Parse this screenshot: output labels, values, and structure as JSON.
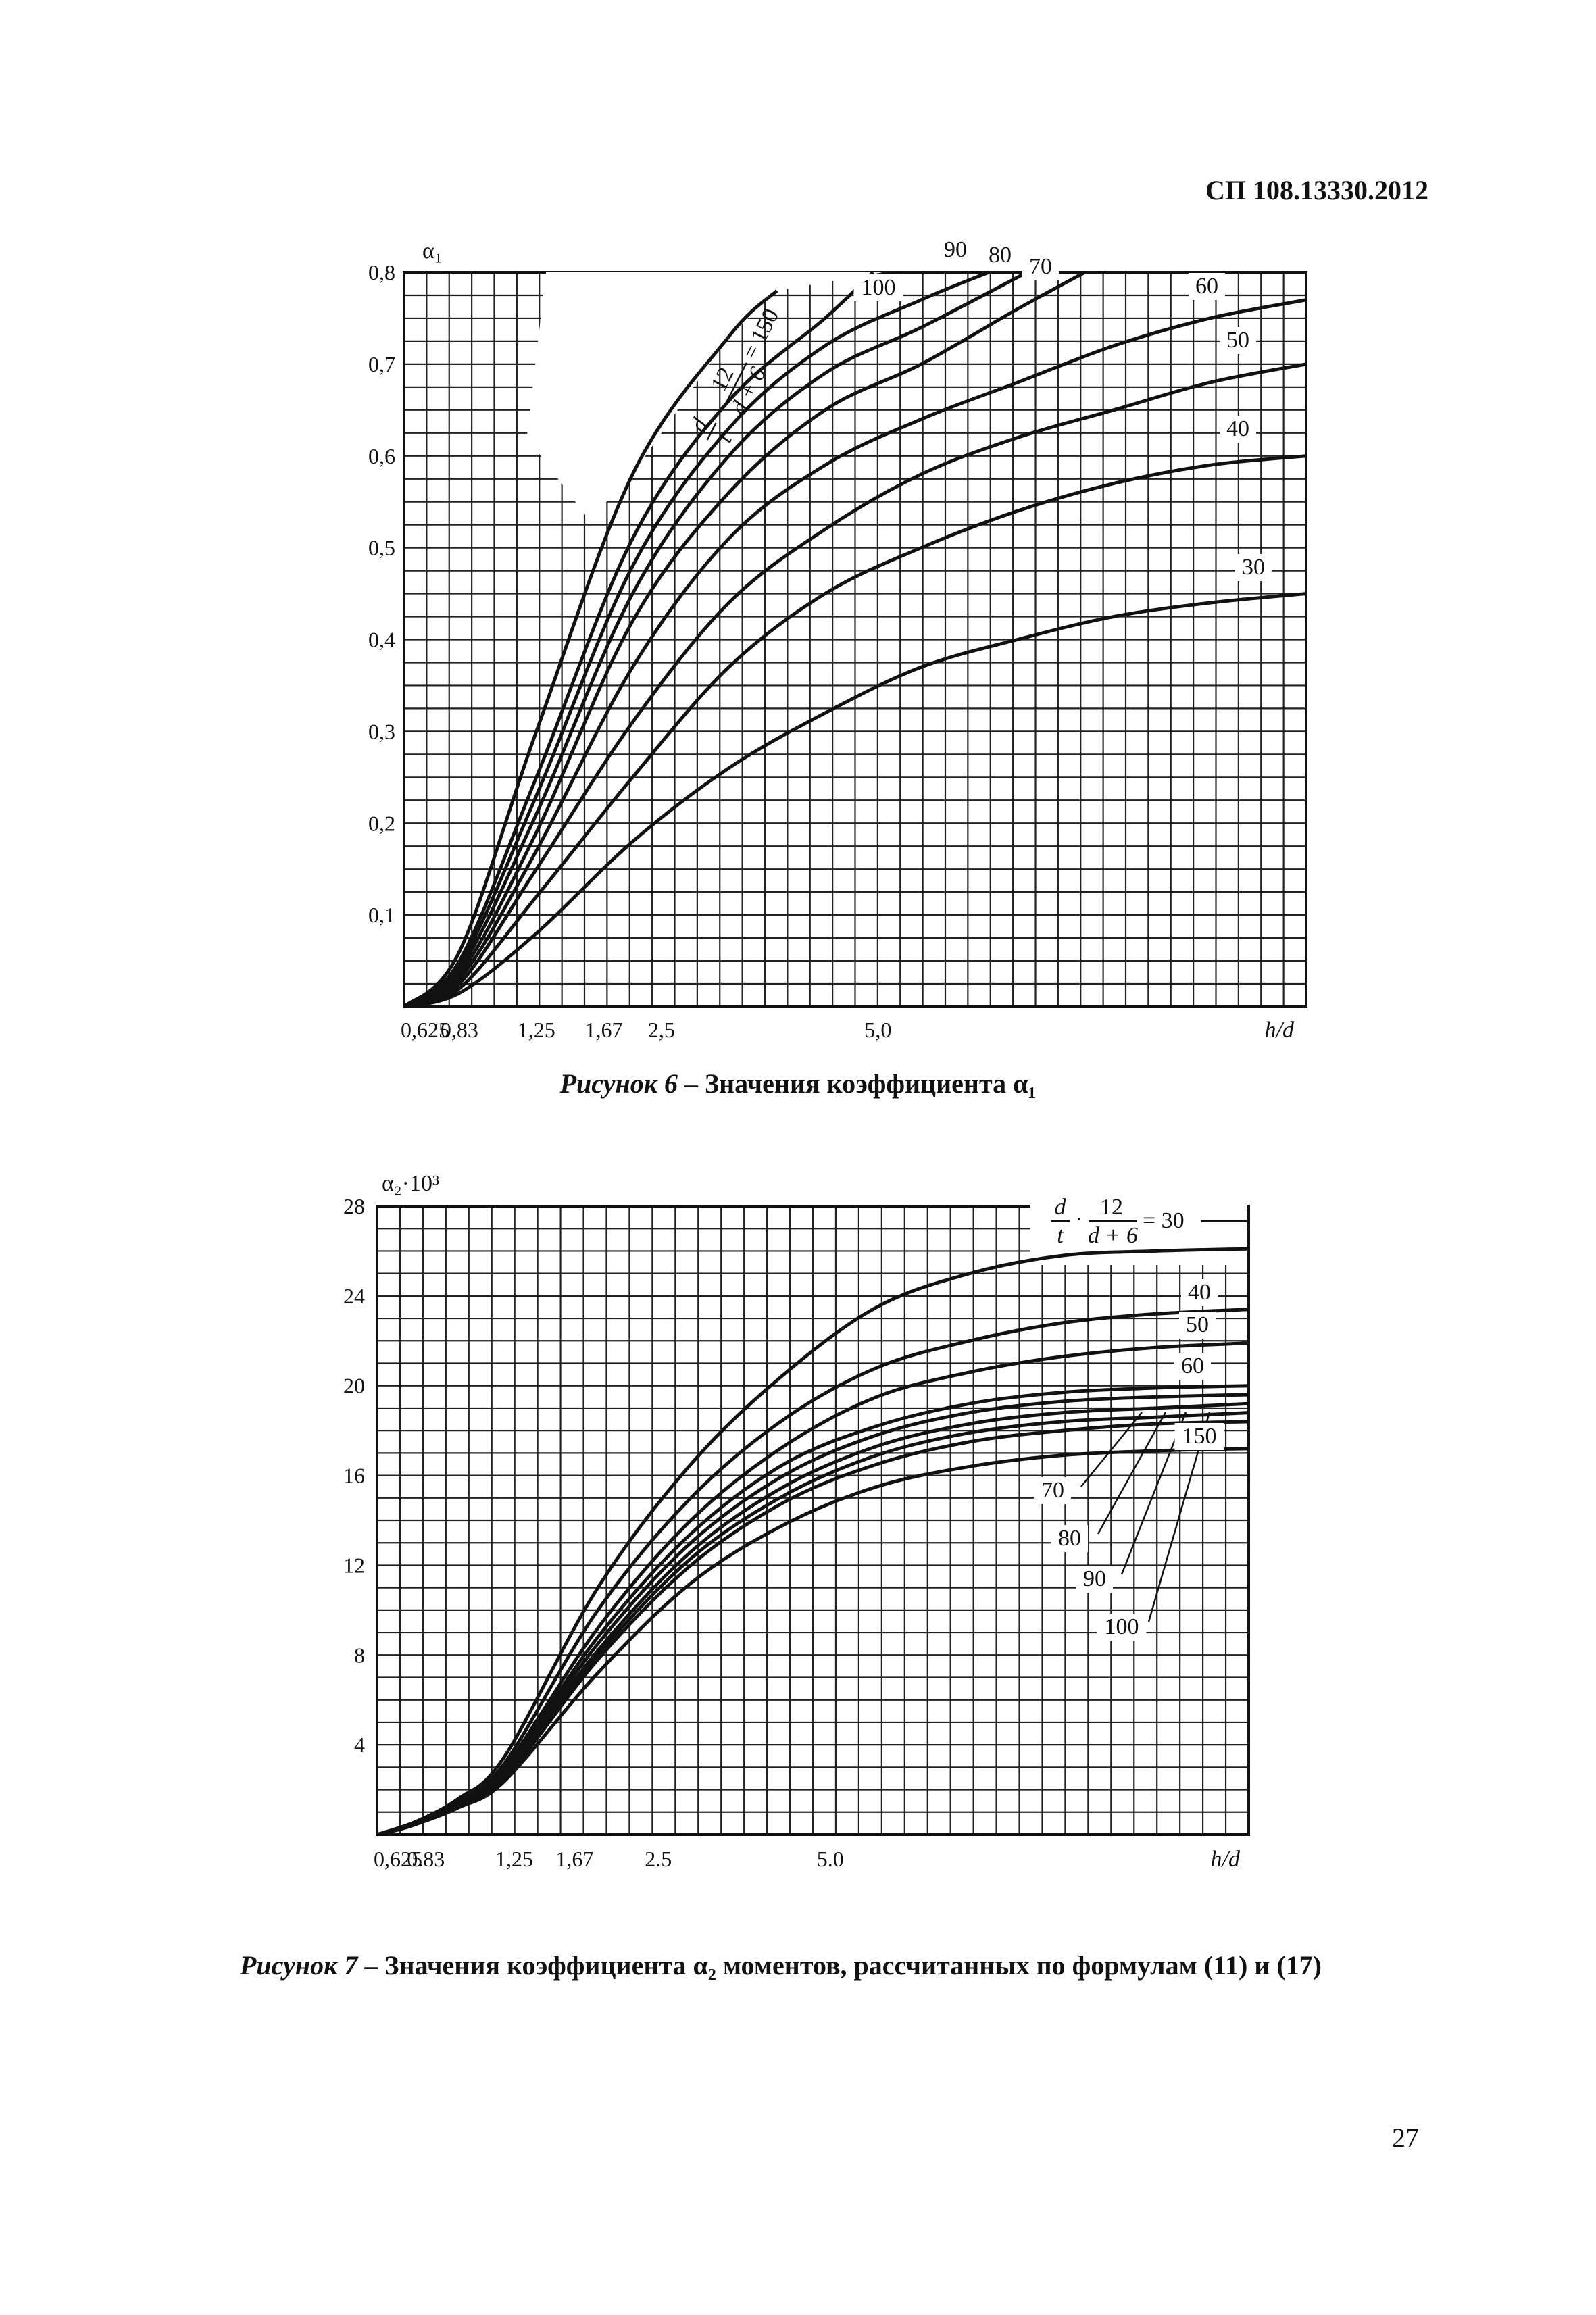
{
  "header": {
    "doc_code": "СП 108.13330.2012"
  },
  "page_number": "27",
  "chart_data": [
    {
      "type": "line",
      "caption_fig": "Рисунок 6",
      "caption_text": " – Значения коэффициента α₁",
      "ylabel": "α₁",
      "xlabel": "h/d",
      "param_formula": {
        "num1": "d",
        "den1": "t",
        "num2": "12",
        "den2": "d + 6",
        "value": "= 150"
      },
      "xlim": [
        0.625,
        10.0
      ],
      "ylim": [
        0,
        0.8
      ],
      "yticks": [
        "0,1",
        "0,2",
        "0,3",
        "0,4",
        "0,5",
        "0,6",
        "0,7",
        "0,8"
      ],
      "xticks": [
        "0,625",
        "0,83",
        "1,25",
        "1,67",
        "2,5",
        "5,0"
      ],
      "xtick_values": [
        0.625,
        1.2,
        2.0,
        2.7,
        3.3,
        5.55
      ],
      "grid": true,
      "series": [
        {
          "name": "30",
          "x": [
            0.625,
            1.2,
            2.0,
            3.0,
            4.0,
            5.0,
            6.0,
            7.0,
            8.0,
            9.0,
            10.0
          ],
          "y": [
            0.0,
            0.015,
            0.08,
            0.18,
            0.26,
            0.32,
            0.37,
            0.4,
            0.425,
            0.44,
            0.45
          ]
        },
        {
          "name": "40",
          "x": [
            0.625,
            1.2,
            2.0,
            3.0,
            4.0,
            5.0,
            6.0,
            7.0,
            8.0,
            9.0,
            10.0
          ],
          "y": [
            0.0,
            0.02,
            0.12,
            0.25,
            0.37,
            0.45,
            0.5,
            0.54,
            0.57,
            0.59,
            0.6
          ]
        },
        {
          "name": "50",
          "x": [
            0.625,
            1.2,
            2.0,
            3.0,
            4.0,
            5.0,
            6.0,
            7.0,
            8.0,
            9.0,
            10.0
          ],
          "y": [
            0.0,
            0.025,
            0.15,
            0.31,
            0.44,
            0.52,
            0.58,
            0.62,
            0.65,
            0.68,
            0.7
          ]
        },
        {
          "name": "60",
          "x": [
            0.625,
            1.2,
            2.0,
            3.0,
            4.0,
            5.0,
            6.0,
            7.0,
            8.0,
            9.0,
            10.0
          ],
          "y": [
            0.0,
            0.03,
            0.17,
            0.37,
            0.51,
            0.59,
            0.64,
            0.68,
            0.72,
            0.75,
            0.77
          ]
        },
        {
          "name": "70",
          "x": [
            0.625,
            1.2,
            2.0,
            3.0,
            4.0,
            5.0,
            6.0,
            7.0,
            7.7
          ],
          "y": [
            0.0,
            0.035,
            0.19,
            0.42,
            0.56,
            0.65,
            0.7,
            0.76,
            0.8
          ]
        },
        {
          "name": "80",
          "x": [
            0.625,
            1.2,
            2.0,
            3.0,
            4.0,
            5.0,
            6.0,
            7.1
          ],
          "y": [
            0.0,
            0.04,
            0.21,
            0.45,
            0.6,
            0.69,
            0.74,
            0.8
          ]
        },
        {
          "name": "90",
          "x": [
            0.625,
            1.2,
            2.0,
            3.0,
            4.0,
            5.0,
            6.0,
            6.7
          ],
          "y": [
            0.0,
            0.045,
            0.23,
            0.48,
            0.63,
            0.72,
            0.77,
            0.8
          ]
        },
        {
          "name": "100",
          "x": [
            0.625,
            1.2,
            2.0,
            3.0,
            4.0,
            5.0,
            5.5
          ],
          "y": [
            0.0,
            0.05,
            0.25,
            0.51,
            0.66,
            0.75,
            0.8
          ]
        },
        {
          "name": "150",
          "x": [
            0.625,
            1.2,
            2.0,
            3.0,
            4.0,
            4.5
          ],
          "y": [
            0.0,
            0.06,
            0.3,
            0.58,
            0.73,
            0.78
          ]
        }
      ]
    },
    {
      "type": "line",
      "caption_fig": "Рисунок 7",
      "caption_text": " – Значения коэффициента α₂ моментов, рассчитанных по формулам (11) и (17)",
      "ylabel": "α₂·10³",
      "xlabel": "h/d",
      "param_formula": {
        "num1": "d",
        "den1": "t",
        "num2": "12",
        "den2": "d + 6",
        "value": "= 30"
      },
      "xlim": [
        0.625,
        10.0
      ],
      "ylim": [
        0,
        28
      ],
      "yticks": [
        "4",
        "8",
        "12",
        "16",
        "20",
        "24",
        "28"
      ],
      "xticks": [
        "0,625",
        "0.83",
        "1,25",
        "1,67",
        "2.5",
        "5.0"
      ],
      "xtick_values": [
        0.625,
        1.15,
        2.1,
        2.75,
        3.65,
        5.5
      ],
      "grid": true,
      "series": [
        {
          "name": "30",
          "x": [
            0.625,
            1.0,
            1.5,
            2.0,
            3.0,
            4.0,
            5.0,
            6.0,
            7.0,
            8.0,
            9.0,
            10.0
          ],
          "y": [
            0.0,
            0.5,
            1.6,
            3.5,
            11.0,
            16.5,
            20.5,
            23.5,
            25.0,
            25.8,
            26.0,
            26.1
          ]
        },
        {
          "name": "40",
          "x": [
            0.625,
            1.0,
            1.5,
            2.0,
            3.0,
            4.0,
            5.0,
            6.0,
            7.0,
            8.0,
            9.0,
            10.0
          ],
          "y": [
            0.0,
            0.5,
            1.5,
            3.2,
            10.0,
            15.0,
            18.5,
            20.8,
            22.0,
            22.8,
            23.2,
            23.4
          ]
        },
        {
          "name": "50",
          "x": [
            0.625,
            1.0,
            1.5,
            2.0,
            3.0,
            4.0,
            5.0,
            6.0,
            7.0,
            8.0,
            9.0,
            10.0
          ],
          "y": [
            0.0,
            0.5,
            1.4,
            3.0,
            9.2,
            14.0,
            17.3,
            19.5,
            20.6,
            21.3,
            21.7,
            21.9
          ]
        },
        {
          "name": "60",
          "x": [
            0.625,
            1.0,
            1.5,
            2.0,
            3.0,
            4.0,
            5.0,
            6.0,
            7.0,
            8.0,
            9.0,
            10.0
          ],
          "y": [
            0.0,
            0.45,
            1.4,
            2.9,
            8.8,
            13.4,
            16.5,
            18.2,
            19.2,
            19.7,
            19.9,
            20.0
          ]
        },
        {
          "name": "70",
          "x": [
            0.625,
            1.0,
            1.5,
            2.0,
            3.0,
            4.0,
            5.0,
            6.0,
            7.0,
            8.0,
            9.0,
            10.0
          ],
          "y": [
            0.0,
            0.45,
            1.35,
            2.8,
            8.5,
            13.0,
            16.0,
            17.8,
            18.8,
            19.3,
            19.5,
            19.6
          ]
        },
        {
          "name": "80",
          "x": [
            0.625,
            1.0,
            1.5,
            2.0,
            3.0,
            4.0,
            5.0,
            6.0,
            7.0,
            8.0,
            9.0,
            10.0
          ],
          "y": [
            0.0,
            0.45,
            1.3,
            2.7,
            8.2,
            12.6,
            15.5,
            17.3,
            18.3,
            18.8,
            19.0,
            19.2
          ]
        },
        {
          "name": "90",
          "x": [
            0.625,
            1.0,
            1.5,
            2.0,
            3.0,
            4.0,
            5.0,
            6.0,
            7.0,
            8.0,
            9.0,
            10.0
          ],
          "y": [
            0.0,
            0.4,
            1.3,
            2.6,
            8.0,
            12.3,
            15.1,
            16.9,
            17.9,
            18.4,
            18.6,
            18.8
          ]
        },
        {
          "name": "100",
          "x": [
            0.625,
            1.0,
            1.5,
            2.0,
            3.0,
            4.0,
            5.0,
            6.0,
            7.0,
            8.0,
            9.0,
            10.0
          ],
          "y": [
            0.0,
            0.4,
            1.25,
            2.5,
            7.8,
            12.0,
            14.8,
            16.5,
            17.5,
            18.0,
            18.3,
            18.4
          ]
        },
        {
          "name": "150",
          "x": [
            0.625,
            1.0,
            1.5,
            2.0,
            3.0,
            4.0,
            5.0,
            6.0,
            7.0,
            8.0,
            9.0,
            10.0
          ],
          "y": [
            0.0,
            0.4,
            1.2,
            2.4,
            7.2,
            11.2,
            13.8,
            15.5,
            16.4,
            16.9,
            17.1,
            17.2
          ]
        }
      ]
    }
  ]
}
